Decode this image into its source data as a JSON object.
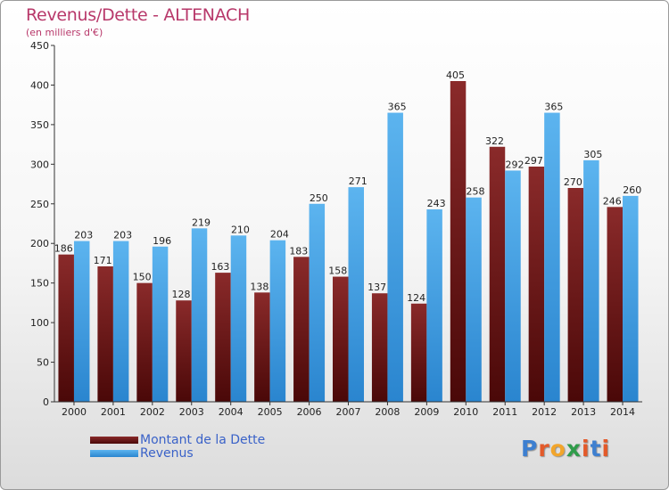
{
  "header": {
    "title": "Revenus/Dette - ALTENACH",
    "subtitle": "(en milliers d'€)"
  },
  "chart_data": {
    "type": "bar",
    "title": "Revenus/Dette - ALTENACH",
    "subtitle": "(en milliers d'€)",
    "xlabel": "",
    "ylabel": "",
    "ylim": [
      0,
      450
    ],
    "yticks": [
      0,
      50,
      100,
      150,
      200,
      250,
      300,
      350,
      400,
      450
    ],
    "grid": false,
    "legend_position": "bottom-left",
    "categories": [
      "2000",
      "2001",
      "2002",
      "2003",
      "2004",
      "2005",
      "2006",
      "2007",
      "2008",
      "2009",
      "2010",
      "2011",
      "2012",
      "2013",
      "2014"
    ],
    "series": [
      {
        "name": "Montant de la Dette",
        "color": "#7a1f1f",
        "values": [
          186,
          171,
          150,
          128,
          163,
          138,
          183,
          158,
          137,
          124,
          405,
          322,
          297,
          270,
          246
        ]
      },
      {
        "name": "Revenus",
        "color": "#4aa3e6",
        "values": [
          203,
          203,
          196,
          219,
          210,
          204,
          250,
          271,
          365,
          243,
          258,
          292,
          365,
          305,
          260
        ]
      }
    ]
  },
  "logo": {
    "letters": [
      {
        "char": "P",
        "color": "#3d7fd0"
      },
      {
        "char": "r",
        "color": "#e35a2a"
      },
      {
        "char": "o",
        "color": "#f2a52b"
      },
      {
        "char": "x",
        "color": "#2f9c4a"
      },
      {
        "char": "i",
        "color": "#e35a2a"
      },
      {
        "char": "t",
        "color": "#3d7fd0"
      },
      {
        "char": "i",
        "color": "#e35a2a"
      }
    ]
  }
}
